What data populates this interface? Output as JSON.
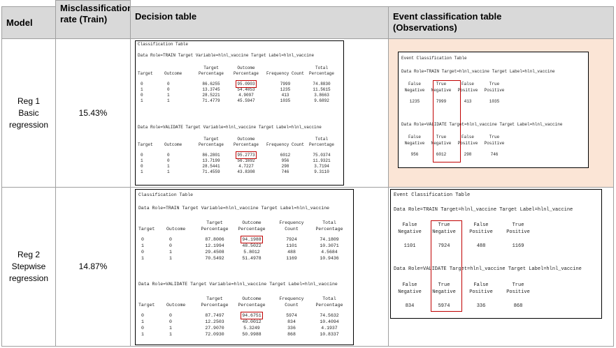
{
  "headers": {
    "model": "Model",
    "misclassification": "Misclassification rate (Train)",
    "decision": "Decision table",
    "event": "Event classification table (Observations)"
  },
  "classification_table": {
    "title": "Classification Table",
    "columns": [
      "Target",
      "Outcome",
      "Target Percentage",
      "Outcome Percentage",
      "Frequency Count",
      "Total Percentage"
    ]
  },
  "event_table": {
    "title": "Event Classification Table",
    "columns": [
      "False Negative",
      "True Negative",
      "False Positive",
      "True Positive"
    ]
  },
  "rows": [
    {
      "model_name": "Reg 1",
      "model_type": "Basic regression",
      "misclassification_rate": "15.43%",
      "train_role": "Data Role=TRAIN Target Variable=hlnl_vaccine Target Label=hlnl_vaccine",
      "validate_role": "Data Role=VALIDATE Target Variable=hlnl_vaccine Target Label=hlnl_vaccine",
      "train": [
        [
          "0",
          "0",
          "86.6255",
          "95.0903",
          "7999",
          "74.8830"
        ],
        [
          "1",
          "0",
          "13.3745",
          "54.4053",
          "1235",
          "11.5615"
        ],
        [
          "0",
          "1",
          "28.5221",
          "4.9097",
          "413",
          "3.8663"
        ],
        [
          "1",
          "1",
          "71.4779",
          "45.5947",
          "1035",
          "9.6892"
        ]
      ],
      "validate": [
        [
          "0",
          "0",
          "86.2801",
          "95.2773",
          "6012",
          "75.0374"
        ],
        [
          "1",
          "0",
          "13.7199",
          "56.1692",
          "956",
          "11.9321"
        ],
        [
          "0",
          "1",
          "28.5441",
          "4.7227",
          "298",
          "3.7194"
        ],
        [
          "1",
          "1",
          "71.4559",
          "43.8308",
          "746",
          "9.3110"
        ]
      ],
      "event_train_role": "Data Role=TRAIN Target=hlnl_vaccine Target Label=hlnl_vaccine",
      "event_validate_role": "Data Role=VALIDATE Target=hlnl_vaccine Target Label=hlnl_vaccine",
      "event_train": [
        "1235",
        "7999",
        "413",
        "1035"
      ],
      "event_validate": [
        "956",
        "6012",
        "298",
        "746"
      ]
    },
    {
      "model_name": "Reg 2",
      "model_type": "Stepwise regression",
      "misclassification_rate": "14.87%",
      "train_role": "Data Role=TRAIN Target Variable=hlnl_vaccine Target Label=hlnl_vaccine",
      "validate_role": "Data Role=VALIDATE Target Variable=hlnl_vaccine Target Label=hlnl_vaccine",
      "train": [
        [
          "0",
          "0",
          "87.8006",
          "94.1988",
          "7924",
          "74.1809"
        ],
        [
          "1",
          "0",
          "12.1994",
          "48.5022",
          "1101",
          "10.3071"
        ],
        [
          "0",
          "1",
          "29.4508",
          "5.8012",
          "488",
          "4.5684"
        ],
        [
          "1",
          "1",
          "70.5492",
          "51.4978",
          "1169",
          "10.9436"
        ]
      ],
      "validate": [
        [
          "0",
          "0",
          "87.7497",
          "94.6751",
          "5974",
          "74.5632"
        ],
        [
          "1",
          "0",
          "12.2503",
          "49.0012",
          "834",
          "10.4094"
        ],
        [
          "0",
          "1",
          "27.9070",
          "5.3249",
          "336",
          "4.1937"
        ],
        [
          "1",
          "1",
          "72.0930",
          "50.9988",
          "868",
          "10.8337"
        ]
      ],
      "event_train_role": "Data Role=TRAIN Target=hlnl_vaccine Target Label=hlnl_vaccine",
      "event_validate_role": "Data Role=VALIDATE Target=hlnl_vaccine Target Label=hlnl_vaccine",
      "event_train": [
        "1101",
        "7924",
        "488",
        "1169"
      ],
      "event_validate": [
        "834",
        "5974",
        "336",
        "868"
      ]
    }
  ]
}
